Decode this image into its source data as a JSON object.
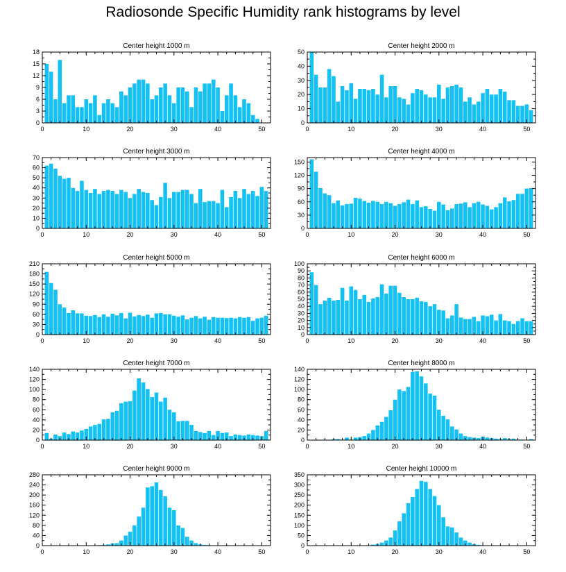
{
  "figure": {
    "title": "Radiosonde Specific Humidity rank histograms by level"
  },
  "colors": {
    "bar": "#14c1f2",
    "axis": "#000000",
    "background": "#ffffff"
  },
  "chart_data": [
    {
      "type": "bar",
      "title": "Center height 1000 m",
      "xlim": [
        0,
        52
      ],
      "ylim": [
        0,
        18
      ],
      "xticks": [
        0,
        10,
        20,
        30,
        40,
        50
      ],
      "yticks": [
        0,
        3,
        6,
        9,
        12,
        15,
        18
      ],
      "values": [
        15,
        13,
        6,
        16,
        5,
        7,
        7,
        4,
        4,
        6,
        5,
        7,
        2,
        5,
        6,
        5,
        4,
        8,
        7,
        9,
        10,
        11,
        11,
        10,
        6,
        7,
        9,
        10,
        7,
        5,
        9,
        9,
        8,
        4,
        9,
        8,
        10,
        10,
        11,
        9,
        3,
        7,
        10,
        7,
        4,
        6,
        5,
        2,
        1
      ]
    },
    {
      "type": "bar",
      "title": "Center height 2000 m",
      "xlim": [
        0,
        52
      ],
      "ylim": [
        0,
        50
      ],
      "xticks": [
        0,
        10,
        20,
        30,
        40,
        50
      ],
      "yticks": [
        0,
        10,
        20,
        30,
        40,
        50
      ],
      "values": [
        50,
        34,
        25,
        25,
        38,
        33,
        15,
        26,
        23,
        28,
        17,
        24,
        24,
        23,
        24,
        20,
        34,
        18,
        26,
        26,
        18,
        17,
        13,
        21,
        24,
        23,
        20,
        18,
        18,
        27,
        17,
        25,
        26,
        27,
        25,
        15,
        18,
        13,
        15,
        21,
        24,
        20,
        20,
        24,
        22,
        16,
        16,
        12,
        12,
        13,
        9
      ]
    },
    {
      "type": "bar",
      "title": "Center height 3000 m",
      "xlim": [
        0,
        52
      ],
      "ylim": [
        0,
        70
      ],
      "xticks": [
        0,
        10,
        20,
        30,
        40,
        50
      ],
      "yticks": [
        0,
        10,
        20,
        30,
        40,
        50,
        60,
        70
      ],
      "values": [
        62,
        64,
        59,
        52,
        49,
        50,
        40,
        37,
        47,
        38,
        35,
        39,
        34,
        37,
        38,
        37,
        34,
        38,
        36,
        30,
        34,
        39,
        36,
        35,
        28,
        23,
        31,
        45,
        30,
        36,
        36,
        38,
        38,
        34,
        25,
        39,
        26,
        27,
        27,
        25,
        38,
        21,
        31,
        37,
        30,
        39,
        34,
        37,
        32,
        41,
        37
      ]
    },
    {
      "type": "bar",
      "title": "Center height 4000 m",
      "xlim": [
        0,
        52
      ],
      "ylim": [
        0,
        160
      ],
      "xticks": [
        0,
        10,
        20,
        30,
        40,
        50
      ],
      "yticks": [
        0,
        30,
        60,
        90,
        120,
        150
      ],
      "values": [
        156,
        128,
        91,
        79,
        75,
        57,
        63,
        52,
        55,
        56,
        69,
        67,
        62,
        58,
        62,
        60,
        55,
        60,
        57,
        51,
        55,
        59,
        65,
        55,
        63,
        48,
        50,
        44,
        40,
        60,
        54,
        41,
        45,
        55,
        56,
        59,
        48,
        57,
        60,
        54,
        51,
        43,
        48,
        57,
        70,
        61,
        64,
        78,
        78,
        90,
        91
      ]
    },
    {
      "type": "bar",
      "title": "Center height 5000 m",
      "xlim": [
        0,
        52
      ],
      "ylim": [
        0,
        210
      ],
      "xticks": [
        0,
        10,
        20,
        30,
        40,
        50
      ],
      "yticks": [
        0,
        30,
        60,
        90,
        120,
        150,
        180,
        210
      ],
      "values": [
        186,
        153,
        133,
        90,
        80,
        64,
        72,
        63,
        63,
        56,
        55,
        58,
        52,
        60,
        53,
        62,
        57,
        64,
        48,
        65,
        54,
        58,
        55,
        59,
        50,
        63,
        64,
        60,
        60,
        56,
        53,
        57,
        45,
        50,
        55,
        48,
        53,
        44,
        52,
        50,
        50,
        49,
        50,
        48,
        52,
        50,
        52,
        41,
        48,
        50,
        56
      ]
    },
    {
      "type": "bar",
      "title": "Center height 6000 m",
      "xlim": [
        0,
        52
      ],
      "ylim": [
        0,
        100
      ],
      "xticks": [
        0,
        10,
        20,
        30,
        40,
        50
      ],
      "yticks": [
        0,
        10,
        20,
        30,
        40,
        50,
        60,
        70,
        80,
        90,
        100
      ],
      "values": [
        88,
        70,
        43,
        48,
        52,
        48,
        49,
        66,
        48,
        68,
        63,
        50,
        56,
        46,
        51,
        53,
        71,
        58,
        69,
        69,
        59,
        53,
        50,
        50,
        52,
        47,
        46,
        40,
        43,
        35,
        34,
        23,
        27,
        43,
        24,
        22,
        22,
        25,
        19,
        27,
        26,
        28,
        20,
        29,
        20,
        19,
        15,
        19,
        23,
        19,
        19
      ]
    },
    {
      "type": "bar",
      "title": "Center height 7000 m",
      "xlim": [
        0,
        52
      ],
      "ylim": [
        0,
        140
      ],
      "xticks": [
        0,
        10,
        20,
        30,
        40,
        50
      ],
      "yticks": [
        0,
        20,
        40,
        60,
        80,
        100,
        120,
        140
      ],
      "values": [
        14,
        3,
        11,
        8,
        15,
        12,
        17,
        15,
        19,
        22,
        27,
        30,
        32,
        41,
        42,
        55,
        58,
        73,
        76,
        77,
        98,
        122,
        114,
        101,
        85,
        94,
        76,
        84,
        60,
        55,
        37,
        38,
        38,
        30,
        18,
        16,
        14,
        18,
        10,
        18,
        14,
        15,
        8,
        11,
        10,
        9,
        11,
        10,
        9,
        8,
        18
      ]
    },
    {
      "type": "bar",
      "title": "Center height 8000 m",
      "xlim": [
        0,
        52
      ],
      "ylim": [
        0,
        140
      ],
      "xticks": [
        0,
        10,
        20,
        30,
        40,
        50
      ],
      "yticks": [
        0,
        20,
        40,
        60,
        80,
        100,
        120,
        140
      ],
      "values": [
        0,
        0,
        0,
        1,
        0,
        2,
        2,
        1,
        5,
        1,
        5,
        6,
        8,
        13,
        20,
        29,
        36,
        46,
        59,
        80,
        100,
        97,
        105,
        135,
        136,
        126,
        112,
        92,
        88,
        60,
        48,
        41,
        27,
        21,
        13,
        8,
        6,
        5,
        4,
        7,
        5,
        4,
        3,
        2,
        4,
        2,
        3,
        1,
        1,
        0,
        2
      ]
    },
    {
      "type": "bar",
      "title": "Center height 9000 m",
      "xlim": [
        0,
        52
      ],
      "ylim": [
        0,
        280
      ],
      "xticks": [
        0,
        10,
        20,
        30,
        40,
        50
      ],
      "yticks": [
        0,
        40,
        80,
        120,
        160,
        200,
        240,
        280
      ],
      "values": [
        0,
        0,
        0,
        0,
        0,
        0,
        0,
        0,
        0,
        0,
        0,
        1,
        2,
        3,
        5,
        9,
        10,
        20,
        40,
        55,
        80,
        115,
        150,
        230,
        235,
        250,
        220,
        195,
        150,
        140,
        80,
        70,
        35,
        20,
        10,
        5,
        3,
        2,
        1,
        1,
        0,
        2,
        1,
        0,
        0,
        1,
        0,
        0,
        0,
        0,
        0
      ]
    },
    {
      "type": "bar",
      "title": "Center height 10000 m",
      "xlim": [
        0,
        52
      ],
      "ylim": [
        0,
        350
      ],
      "xticks": [
        0,
        10,
        20,
        30,
        40,
        50
      ],
      "yticks": [
        0,
        50,
        100,
        150,
        200,
        250,
        300,
        350
      ],
      "values": [
        0,
        0,
        0,
        0,
        0,
        0,
        0,
        0,
        0,
        0,
        0,
        0,
        1,
        2,
        5,
        8,
        15,
        25,
        40,
        75,
        120,
        160,
        210,
        240,
        280,
        320,
        315,
        280,
        245,
        200,
        140,
        95,
        90,
        65,
        40,
        25,
        15,
        7,
        4,
        2,
        1,
        1,
        1,
        0,
        0,
        0,
        0,
        0,
        0,
        0,
        0
      ]
    }
  ]
}
